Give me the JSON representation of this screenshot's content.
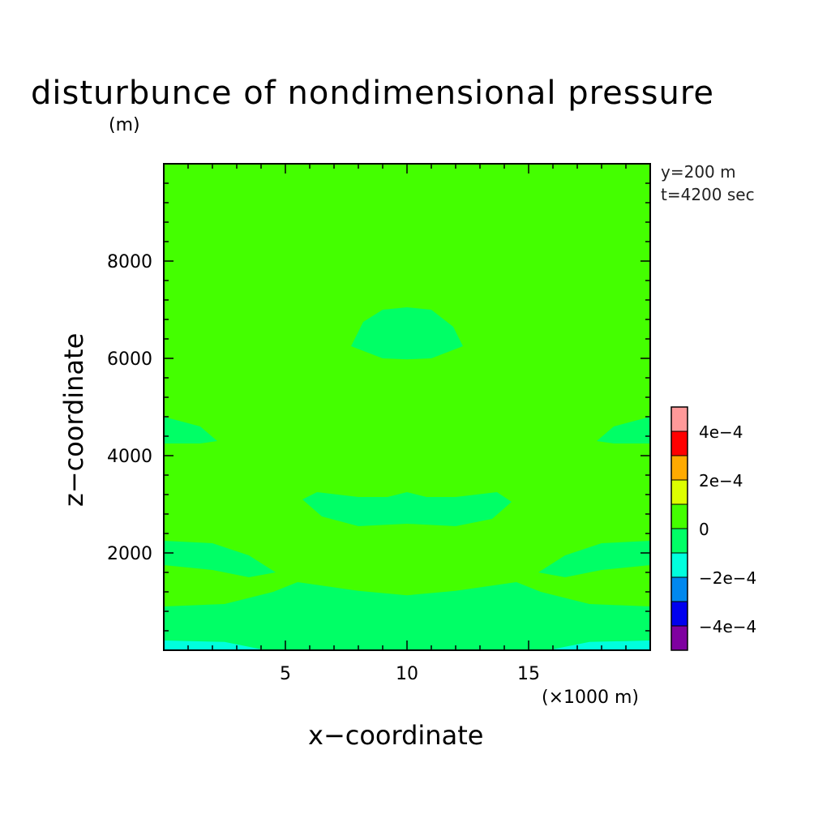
{
  "chart_data": {
    "type": "heatmap",
    "title": "disturbunce of nondimensional pressure",
    "xlabel": "x−coordinate",
    "ylabel": "z−coordinate",
    "x_unit": "(×1000 m)",
    "y_unit": "(m)",
    "annotations": [
      "y=200 m",
      "t=4200 sec"
    ],
    "xlim": [
      0,
      20
    ],
    "ylim": [
      0,
      10000
    ],
    "x_ticks": [
      5,
      10,
      15
    ],
    "y_ticks": [
      2000,
      4000,
      6000,
      8000
    ],
    "x_tick_labels": [
      "5",
      "10",
      "15"
    ],
    "y_tick_labels": [
      "2000",
      "4000",
      "6000",
      "8000"
    ],
    "background_value": 5e-05,
    "regions": [
      {
        "value": -5e-05,
        "color": "#00ff66",
        "points": [
          [
            7.7,
            6250
          ],
          [
            8.2,
            6750
          ],
          [
            9,
            7000
          ],
          [
            10,
            7050
          ],
          [
            11,
            7000
          ],
          [
            11.9,
            6650
          ],
          [
            12.3,
            6250
          ],
          [
            11,
            6000
          ],
          [
            10,
            5980
          ],
          [
            9,
            6000
          ]
        ]
      },
      {
        "value": -5e-05,
        "color": "#00ff66",
        "points": [
          [
            0,
            4800
          ],
          [
            1.5,
            4600
          ],
          [
            2.2,
            4300
          ],
          [
            1.5,
            4250
          ],
          [
            0,
            4250
          ]
        ]
      },
      {
        "value": -5e-05,
        "color": "#00ff66",
        "points": [
          [
            20,
            4800
          ],
          [
            18.5,
            4600
          ],
          [
            17.8,
            4300
          ],
          [
            18.5,
            4250
          ],
          [
            20,
            4250
          ]
        ]
      },
      {
        "value": -5e-05,
        "color": "#00ff66",
        "points": [
          [
            5.7,
            3100
          ],
          [
            6.3,
            3250
          ],
          [
            8,
            3150
          ],
          [
            9.2,
            3150
          ],
          [
            10,
            3250
          ],
          [
            10.8,
            3150
          ],
          [
            12,
            3150
          ],
          [
            13.7,
            3250
          ],
          [
            14.3,
            3050
          ],
          [
            13.5,
            2700
          ],
          [
            12,
            2550
          ],
          [
            10,
            2600
          ],
          [
            8,
            2550
          ],
          [
            6.5,
            2750
          ]
        ]
      },
      {
        "value": -5e-05,
        "color": "#00ff66",
        "points": [
          [
            0,
            2250
          ],
          [
            2,
            2200
          ],
          [
            3.5,
            1950
          ],
          [
            4.6,
            1600
          ],
          [
            3.5,
            1500
          ],
          [
            2,
            1650
          ],
          [
            0,
            1750
          ]
        ]
      },
      {
        "value": -5e-05,
        "color": "#00ff66",
        "points": [
          [
            20,
            2250
          ],
          [
            18,
            2200
          ],
          [
            16.5,
            1950
          ],
          [
            15.4,
            1600
          ],
          [
            16.5,
            1500
          ],
          [
            18,
            1650
          ],
          [
            20,
            1750
          ]
        ]
      },
      {
        "value": -5e-05,
        "color": "#00ff66",
        "points": [
          [
            0,
            900
          ],
          [
            2.5,
            950
          ],
          [
            4.5,
            1200
          ],
          [
            5.5,
            1400
          ],
          [
            8,
            1220
          ],
          [
            10,
            1130
          ],
          [
            12,
            1220
          ],
          [
            14.5,
            1400
          ],
          [
            15.5,
            1200
          ],
          [
            17.5,
            950
          ],
          [
            20,
            900
          ],
          [
            20,
            0
          ],
          [
            0,
            0
          ]
        ]
      },
      {
        "value": -0.00015,
        "color": "#00ffdd",
        "points": [
          [
            0,
            200
          ],
          [
            2.5,
            170
          ],
          [
            4.2,
            0
          ],
          [
            15.8,
            0
          ],
          [
            17.5,
            170
          ],
          [
            20,
            200
          ],
          [
            20,
            0
          ],
          [
            0,
            0
          ]
        ]
      }
    ],
    "colorbar": {
      "colors": [
        "#7f00a0",
        "#0000ee",
        "#0088ee",
        "#00ffdd",
        "#00ff66",
        "#44ff00",
        "#ddff00",
        "#ffaa00",
        "#ff0000",
        "#ff9999"
      ],
      "labels": [
        "−4e−4",
        "−2e−4",
        "0",
        "2e−4",
        "4e−4"
      ]
    }
  }
}
